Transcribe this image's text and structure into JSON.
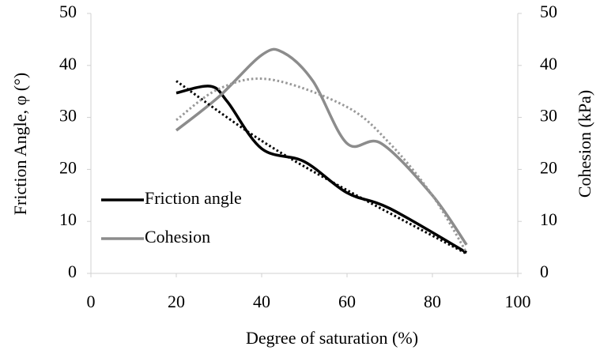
{
  "chart_data": {
    "type": "line",
    "xlabel": "Degree of saturation (%)",
    "ylabel": "Friction Angle, φ (°)",
    "y2label": "Cohesion (kPa)",
    "xlim": [
      0,
      100
    ],
    "xticks": [
      0,
      20,
      40,
      60,
      80,
      100
    ],
    "ylim": [
      0,
      50
    ],
    "yticks": [
      0,
      10,
      20,
      30,
      40,
      50
    ],
    "y2lim": [
      0,
      50
    ],
    "y2ticks": [
      0,
      10,
      20,
      30,
      40,
      50
    ],
    "grid": false,
    "legend": "lower left",
    "series": [
      {
        "name": "Friction angle",
        "color": "#000000",
        "style": "solid",
        "x": [
          20,
          28,
          32,
          40,
          50,
          60,
          70,
          88
        ],
        "values": [
          34.7,
          36,
          33,
          24,
          21.5,
          15.5,
          12.5,
          4
        ]
      },
      {
        "name": "Cohesion",
        "color": "#8c8c8c",
        "style": "solid",
        "axis": "y2",
        "x": [
          20,
          30,
          40,
          45,
          52,
          60,
          68,
          80,
          88
        ],
        "values": [
          27.5,
          34,
          42,
          42.5,
          37,
          25,
          25,
          15,
          5.5
        ]
      },
      {
        "color": "#000000",
        "style": "dotted",
        "x": [
          20,
          40,
          60,
          88
        ],
        "values": [
          37,
          25.5,
          16,
          3.8
        ]
      },
      {
        "color": "#999999",
        "style": "dotted",
        "axis": "y2",
        "x": [
          20,
          30,
          42,
          60,
          70,
          80,
          88
        ],
        "values": [
          29.5,
          35.5,
          37.3,
          32,
          25,
          15,
          4
        ]
      }
    ]
  }
}
